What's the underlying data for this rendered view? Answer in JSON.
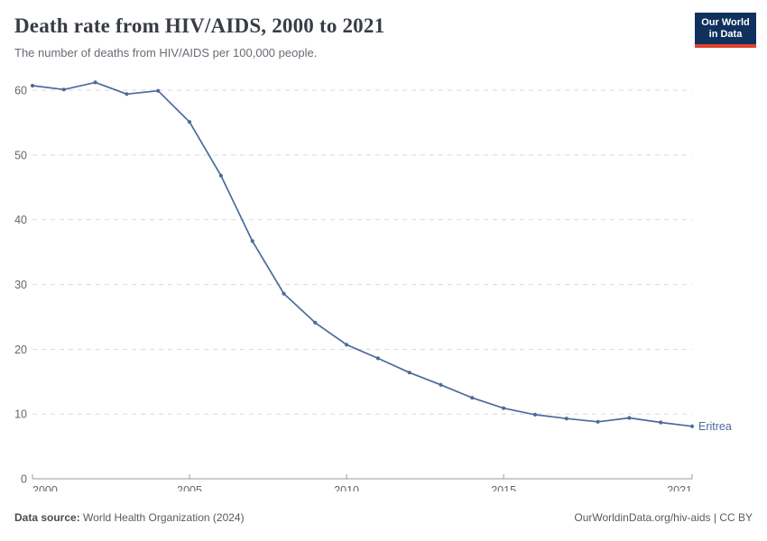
{
  "header": {
    "title": "Death rate from HIV/AIDS, 2000 to 2021",
    "subtitle": "The number of deaths from HIV/AIDS per 100,000 people."
  },
  "logo": {
    "line1": "Our World",
    "line2": "in Data",
    "bg_color": "#10315e",
    "accent_color": "#e0422e"
  },
  "chart_data": {
    "type": "line",
    "title": "Death rate from HIV/AIDS, 2000 to 2021",
    "xlabel": "",
    "ylabel": "",
    "x_domain": [
      2000,
      2021
    ],
    "ylim": [
      0,
      60
    ],
    "x_ticks": [
      2000,
      2005,
      2010,
      2015,
      2021
    ],
    "y_ticks": [
      0,
      10,
      20,
      30,
      40,
      50,
      60
    ],
    "grid": "dashed-horizontal",
    "legend_position": "end-of-line-label",
    "series": [
      {
        "name": "Eritrea",
        "color": "#4C6A9C",
        "x": [
          2000,
          2001,
          2002,
          2003,
          2004,
          2005,
          2006,
          2007,
          2008,
          2009,
          2010,
          2011,
          2012,
          2013,
          2014,
          2015,
          2016,
          2017,
          2018,
          2019,
          2020,
          2021
        ],
        "values": [
          60.7,
          60.1,
          61.2,
          59.4,
          59.9,
          55.1,
          46.8,
          36.7,
          28.6,
          24.1,
          20.7,
          18.6,
          16.4,
          14.5,
          12.5,
          10.9,
          9.9,
          9.3,
          8.8,
          9.4,
          8.7,
          8.1
        ]
      }
    ],
    "colors": {
      "grid": "#dadada",
      "axis": "#999999",
      "tick_text": "#666666"
    }
  },
  "footer": {
    "datasource_label": "Data source:",
    "datasource_value": "World Health Organization (2024)",
    "credit": "OurWorldinData.org/hiv-aids | CC BY"
  }
}
